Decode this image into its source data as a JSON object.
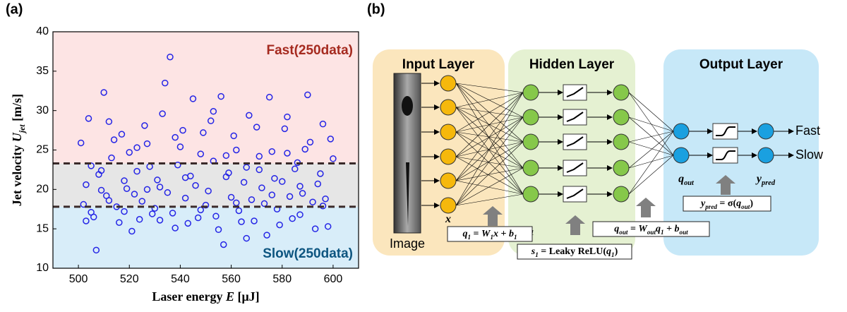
{
  "chart_data": {
    "type": "scatter",
    "panel_label": "(a)",
    "xlabel": [
      "Laser energy ",
      [
        "E"
      ],
      "  [μJ]"
    ],
    "ylabel": [
      "Jet velocity ",
      [
        "U",
        "jet"
      ],
      "  [m/s]"
    ],
    "xlim": [
      490,
      610
    ],
    "xticks": [
      500,
      520,
      540,
      560,
      580,
      600
    ],
    "ylim": [
      10,
      40
    ],
    "yticks": [
      10,
      15,
      20,
      25,
      30,
      35,
      40
    ],
    "color": "#2424e6",
    "thresholds": [
      17.8,
      23.3
    ],
    "region_colors": [
      "#d8edf9",
      "#e6e6e6",
      "#fde4e4"
    ],
    "annotations": [
      {
        "text": "Fast(250data)",
        "color": "#a52a1f"
      },
      {
        "text": "Slow(250data)",
        "color": "#0d5580"
      }
    ],
    "x": [
      501,
      503,
      505,
      507,
      509,
      510,
      512,
      514,
      516,
      518,
      520,
      522,
      524,
      526,
      528,
      530,
      532,
      534,
      536,
      538,
      540,
      542,
      544,
      545,
      547,
      549,
      551,
      553,
      555,
      556,
      557,
      559,
      561,
      563,
      565,
      567,
      569,
      571,
      573,
      575,
      577,
      579,
      581,
      583,
      585,
      587,
      589,
      590,
      592,
      594,
      596,
      598,
      600,
      502,
      504,
      506,
      508,
      511,
      513,
      515,
      517,
      519,
      521,
      523,
      525,
      527,
      529,
      531,
      533,
      535,
      537,
      539,
      541,
      543,
      546,
      548,
      550,
      552,
      554,
      558,
      560,
      562,
      564,
      566,
      568,
      570,
      572,
      574,
      576,
      578,
      580,
      582,
      584,
      586,
      588,
      591,
      593,
      595,
      597,
      599,
      503,
      505,
      509,
      512,
      518,
      523,
      527,
      532,
      538,
      542,
      548,
      553,
      558,
      562,
      566,
      571,
      576,
      582,
      587,
      596
    ],
    "y": [
      25.9,
      20.6,
      17.1,
      12.3,
      22.4,
      32.3,
      18.6,
      26.3,
      15.8,
      21.1,
      24.7,
      19.4,
      16.2,
      28.1,
      22.9,
      17.6,
      20.3,
      33.5,
      36.8,
      15.1,
      25.4,
      18.9,
      21.7,
      31.5,
      16.4,
      27.2,
      19.8,
      23.6,
      14.9,
      31.8,
      13,
      22.1,
      26.8,
      17.3,
      20.9,
      29.4,
      16,
      24.2,
      18.2,
      31.7,
      21.4,
      15.5,
      27.7,
      19.1,
      22.6,
      16.8,
      25.1,
      32,
      18.4,
      20.7,
      28.3,
      15.3,
      23.9,
      18.1,
      29,
      16.5,
      21.9,
      19.2,
      24,
      17.8,
      27,
      20.1,
      14.7,
      22.3,
      18.5,
      25.8,
      16.9,
      21.2,
      29.6,
      19.6,
      17,
      23.1,
      27.5,
      15.7,
      20.5,
      24.5,
      18,
      28.7,
      16.6,
      21.6,
      19,
      25,
      15.9,
      22.8,
      18.7,
      27.9,
      20.2,
      14.2,
      24.8,
      17.5,
      21,
      29.2,
      16.3,
      23.4,
      19.5,
      26,
      15,
      22,
      18.8,
      26.4,
      16,
      23,
      19.9,
      28.6,
      17.2,
      25.3,
      20,
      16.1,
      26.6,
      21.5,
      17.4,
      29.9,
      24.3,
      18.3,
      13.8,
      22.5,
      19.3,
      24.6,
      20.4,
      17.9
    ]
  },
  "diagram": {
    "panel_label": "(b)",
    "layers": [
      "Input Layer",
      "Hidden Layer",
      "Output Layer"
    ],
    "image_label": "Image",
    "outputs": [
      "Fast",
      "Slow"
    ],
    "variables": [
      [
        [
          "x"
        ]
      ],
      [
        [
          "q",
          "1"
        ]
      ],
      [
        [
          "s",
          "1"
        ]
      ],
      [
        [
          "q",
          "out"
        ]
      ],
      [
        [
          "y",
          "pred"
        ]
      ]
    ],
    "equations": [
      [
        [
          "q",
          "1"
        ],
        " = ",
        [
          "W",
          "1"
        ],
        [
          "x"
        ],
        " + ",
        [
          "b",
          "1"
        ]
      ],
      [
        [
          "s",
          "1"
        ],
        " = Leaky ReLU(",
        [
          "q",
          "1"
        ],
        ")"
      ],
      [
        [
          "q",
          "out"
        ],
        " = ",
        [
          "W",
          "out"
        ],
        [
          "q",
          "1"
        ],
        " + ",
        [
          "b",
          "out"
        ]
      ],
      [
        [
          "y",
          "pred"
        ],
        " = σ(",
        [
          "q",
          "out"
        ],
        ")"
      ]
    ]
  }
}
